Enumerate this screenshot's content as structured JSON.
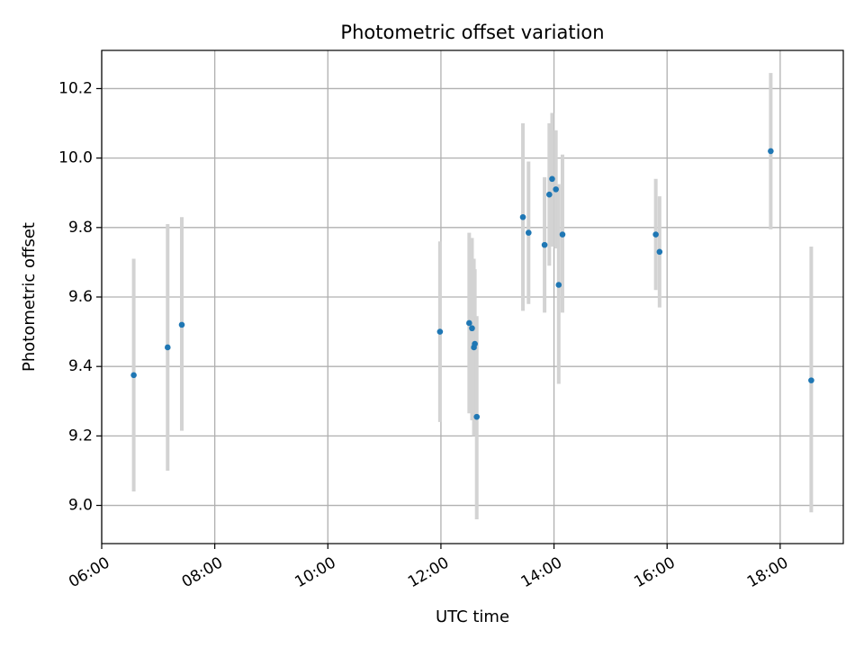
{
  "chart_data": {
    "type": "scatter",
    "title": "Photometric offset variation",
    "xlabel": "UTC time",
    "ylabel": "Photometric offset",
    "xlim": [
      "06:00",
      "19:07"
    ],
    "ylim": [
      8.89,
      10.31
    ],
    "xticks": [
      "06:00",
      "08:00",
      "10:00",
      "12:00",
      "14:00",
      "16:00",
      "18:00"
    ],
    "yticks": [
      "9.0",
      "9.2",
      "9.4",
      "9.6",
      "9.8",
      "10.0",
      "10.2"
    ],
    "grid": true,
    "colors": {
      "points": "#1f77b4",
      "errorbars": "#d3d3d3",
      "grid": "#b0b0b0"
    },
    "series": [
      {
        "points": [
          {
            "x": "06:34",
            "y": 9.375,
            "ylow": 9.04,
            "yhigh": 9.71
          },
          {
            "x": "07:10",
            "y": 9.455,
            "ylow": 9.1,
            "yhigh": 9.81
          },
          {
            "x": "07:25",
            "y": 9.52,
            "ylow": 9.215,
            "yhigh": 9.83
          },
          {
            "x": "11:59",
            "y": 9.5,
            "ylow": 9.24,
            "yhigh": 9.76
          },
          {
            "x": "12:30",
            "y": 9.525,
            "ylow": 9.265,
            "yhigh": 9.785
          },
          {
            "x": "12:33",
            "y": 9.51,
            "ylow": 9.245,
            "yhigh": 9.77
          },
          {
            "x": "12:35",
            "y": 9.455,
            "ylow": 9.2,
            "yhigh": 9.71
          },
          {
            "x": "12:36",
            "y": 9.465,
            "ylow": 9.23,
            "yhigh": 9.68
          },
          {
            "x": "12:38",
            "y": 9.255,
            "ylow": 8.96,
            "yhigh": 9.545
          },
          {
            "x": "13:27",
            "y": 9.83,
            "ylow": 9.56,
            "yhigh": 10.1
          },
          {
            "x": "13:33",
            "y": 9.785,
            "ylow": 9.58,
            "yhigh": 9.99
          },
          {
            "x": "13:50",
            "y": 9.75,
            "ylow": 9.555,
            "yhigh": 9.945
          },
          {
            "x": "13:55",
            "y": 9.895,
            "ylow": 9.69,
            "yhigh": 10.1
          },
          {
            "x": "13:58",
            "y": 9.94,
            "ylow": 9.745,
            "yhigh": 10.13
          },
          {
            "x": "14:02",
            "y": 9.91,
            "ylow": 9.74,
            "yhigh": 10.08
          },
          {
            "x": "14:05",
            "y": 9.635,
            "ylow": 9.35,
            "yhigh": 9.925
          },
          {
            "x": "14:09",
            "y": 9.78,
            "ylow": 9.555,
            "yhigh": 10.01
          },
          {
            "x": "15:48",
            "y": 9.78,
            "ylow": 9.62,
            "yhigh": 9.94
          },
          {
            "x": "15:52",
            "y": 9.73,
            "ylow": 9.57,
            "yhigh": 9.89
          },
          {
            "x": "17:50",
            "y": 10.02,
            "ylow": 9.795,
            "yhigh": 10.245
          },
          {
            "x": "18:33",
            "y": 9.36,
            "ylow": 8.98,
            "yhigh": 9.745
          }
        ]
      }
    ]
  }
}
